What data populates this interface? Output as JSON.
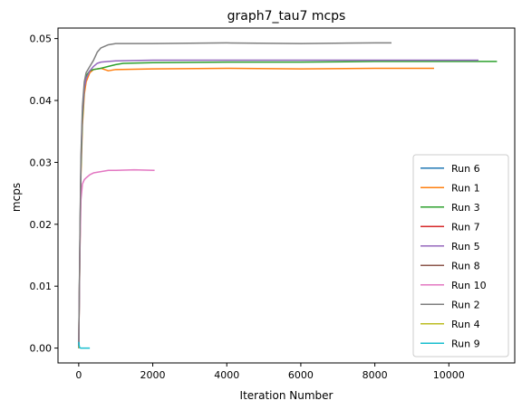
{
  "chart_data": {
    "type": "line",
    "title": "graph7_tau7 mcps",
    "xlabel": "Iteration Number",
    "ylabel": "mcps",
    "xlim": [
      -560,
      11780
    ],
    "ylim": [
      -0.0024,
      0.0517
    ],
    "xticks": [
      0,
      2000,
      4000,
      6000,
      8000,
      10000
    ],
    "yticks": [
      0.0,
      0.01,
      0.02,
      0.03,
      0.04,
      0.05
    ],
    "ytick_labels": [
      "0.00",
      "0.01",
      "0.02",
      "0.03",
      "0.04",
      "0.05"
    ],
    "grid": false,
    "legend_position": "lower right",
    "series": [
      {
        "name": "Run 6",
        "color": "#1f77b4",
        "x": [
          0,
          5,
          10
        ],
        "y": [
          0.0,
          0.0005,
          0.001
        ]
      },
      {
        "name": "Run 1",
        "color": "#ff7f0e",
        "x": [
          0,
          30,
          60,
          100,
          150,
          200,
          300,
          400,
          600,
          800,
          1000,
          2000,
          4000,
          6000,
          8000,
          9600
        ],
        "y": [
          0.0,
          0.015,
          0.028,
          0.036,
          0.041,
          0.043,
          0.0445,
          0.045,
          0.0452,
          0.0448,
          0.045,
          0.0451,
          0.0452,
          0.0451,
          0.0452,
          0.0452
        ]
      },
      {
        "name": "Run 3",
        "color": "#2ca02c",
        "x": [
          0,
          30,
          60,
          100,
          150,
          200,
          300,
          400,
          600,
          800,
          1000,
          1200,
          2000,
          4000,
          6000,
          8000,
          10000,
          11300
        ],
        "y": [
          0.0,
          0.016,
          0.029,
          0.037,
          0.042,
          0.044,
          0.0448,
          0.045,
          0.0452,
          0.0455,
          0.0458,
          0.046,
          0.0461,
          0.0462,
          0.0462,
          0.0463,
          0.0463,
          0.0463
        ]
      },
      {
        "name": "Run 7",
        "color": "#d62728",
        "x": [
          0,
          5,
          10
        ],
        "y": [
          0.0,
          0.0003,
          0.0006
        ]
      },
      {
        "name": "Run 5",
        "color": "#9467bd",
        "x": [
          0,
          30,
          60,
          100,
          150,
          200,
          300,
          400,
          500,
          600,
          800,
          1000,
          2000,
          4000,
          6000,
          8000,
          10000,
          10800
        ],
        "y": [
          0.0,
          0.016,
          0.03,
          0.038,
          0.042,
          0.0435,
          0.0448,
          0.0455,
          0.046,
          0.0462,
          0.0463,
          0.0464,
          0.0465,
          0.0465,
          0.0465,
          0.0465,
          0.0465,
          0.0465
        ]
      },
      {
        "name": "Run 8",
        "color": "#8c564b",
        "x": [
          0,
          5,
          10
        ],
        "y": [
          0.0,
          0.0004,
          0.0008
        ]
      },
      {
        "name": "Run 10",
        "color": "#e377c2",
        "x": [
          0,
          30,
          60,
          100,
          150,
          200,
          300,
          400,
          600,
          800,
          1000,
          1500,
          2050
        ],
        "y": [
          0.0,
          0.015,
          0.024,
          0.0265,
          0.0272,
          0.0275,
          0.028,
          0.0283,
          0.0285,
          0.0287,
          0.0287,
          0.0288,
          0.0287
        ]
      },
      {
        "name": "Run 2",
        "color": "#7f7f7f",
        "x": [
          0,
          30,
          60,
          100,
          150,
          200,
          300,
          400,
          500,
          600,
          800,
          1000,
          2000,
          4000,
          6000,
          8000,
          8450
        ],
        "y": [
          0.0,
          0.017,
          0.031,
          0.039,
          0.043,
          0.0445,
          0.0455,
          0.0465,
          0.0478,
          0.0485,
          0.049,
          0.0492,
          0.0492,
          0.0493,
          0.0492,
          0.0493,
          0.0493
        ]
      },
      {
        "name": "Run 4",
        "color": "#bcbd22",
        "x": [
          0,
          5,
          10
        ],
        "y": [
          0.0,
          0.0002,
          0.0004
        ]
      },
      {
        "name": "Run 9",
        "color": "#17becf",
        "x": [
          0,
          20,
          50,
          100,
          150,
          200,
          250,
          300
        ],
        "y": [
          0.001,
          0.0001,
          0.0,
          0.0,
          0.0,
          0.0,
          0.0,
          0.0
        ]
      }
    ]
  }
}
